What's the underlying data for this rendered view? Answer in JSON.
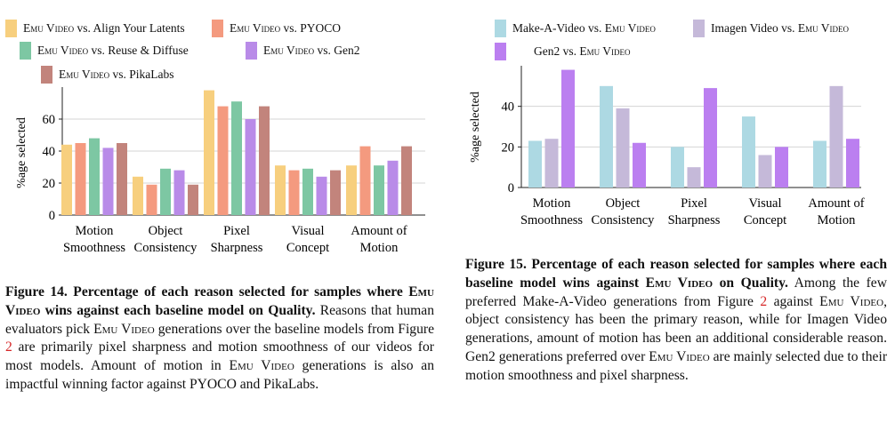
{
  "colors": {
    "align": "#f7cf7e",
    "pyoco": "#f49a7f",
    "reuse": "#7dc7a3",
    "gen2": "#b98be8",
    "pika": "#c2847c",
    "makeavideo": "#add9e3",
    "imagen": "#c5b9d9",
    "gen2_right": "#bb7ff0"
  },
  "chart_data": [
    {
      "type": "bar",
      "ylabel": "%age selected",
      "ylim": [
        0,
        80
      ],
      "yticks": [
        0,
        20,
        40,
        60
      ],
      "grid": true,
      "legend_placement": "top",
      "categories": [
        [
          "Motion",
          "Smoothness"
        ],
        [
          "Object",
          "Consistency"
        ],
        [
          "Pixel",
          "Sharpness"
        ],
        [
          "Visual",
          "Concept"
        ],
        [
          "Amount of",
          "Motion"
        ]
      ],
      "series": [
        {
          "name": "Emu Video vs. Align Your Latents",
          "color_key": "align",
          "values": [
            44,
            24,
            78,
            31,
            31
          ]
        },
        {
          "name": "Emu Video vs. PYOCO",
          "color_key": "pyoco",
          "values": [
            45,
            19,
            68,
            28,
            43
          ]
        },
        {
          "name": "Emu Video vs. Reuse & Diffuse",
          "color_key": "reuse",
          "values": [
            48,
            29,
            71,
            29,
            31
          ]
        },
        {
          "name": "Emu Video vs. Gen2",
          "color_key": "gen2",
          "values": [
            42,
            28,
            60,
            24,
            34
          ]
        },
        {
          "name": "Emu Video vs. PikaLabs",
          "color_key": "pika",
          "values": [
            45,
            19,
            68,
            28,
            43
          ]
        }
      ]
    },
    {
      "type": "bar",
      "ylabel": "%age selected",
      "ylim": [
        0,
        60
      ],
      "yticks": [
        0,
        20,
        40
      ],
      "grid": true,
      "legend_placement": "top",
      "categories": [
        [
          "Motion",
          "Smoothness"
        ],
        [
          "Object",
          "Consistency"
        ],
        [
          "Pixel",
          "Sharpness"
        ],
        [
          "Visual",
          "Concept"
        ],
        [
          "Amount of",
          "Motion"
        ]
      ],
      "series": [
        {
          "name": "Make-A-Video vs. Emu Video",
          "color_key": "makeavideo",
          "values": [
            23,
            50,
            20,
            35,
            23
          ]
        },
        {
          "name": "Imagen Video vs. Emu Video",
          "color_key": "imagen",
          "values": [
            24,
            39,
            10,
            16,
            50
          ]
        },
        {
          "name": "Gen2 vs. Emu Video",
          "color_key": "gen2_right",
          "values": [
            58,
            22,
            49,
            20,
            24
          ]
        }
      ]
    }
  ],
  "legend_left": {
    "emu": "Emu Video",
    "items": [
      "vs. Align Your Latents",
      "vs. PYOCO",
      "vs. Reuse & Diffuse",
      "vs. Gen2",
      "vs. PikaLabs"
    ]
  },
  "legend_right": {
    "emu": "Emu Video",
    "items": [
      "Make-A-Video vs.",
      "Imagen Video vs.",
      "Gen2 vs."
    ]
  },
  "caption14": {
    "label": "Figure 14.",
    "bold1": "Percentage of each reason selected for samples where",
    "emu": "Emu Video",
    "bold2": "wins against each baseline model on Quality.",
    "text1": "Reasons that human evaluators pick",
    "text2": "generations over the baseline models from Figure",
    "ref": "2",
    "text3": "are primarily pixel sharpness and motion smoothness of our videos for most models. Amount of motion in",
    "text4": "generations is also an impactful winning factor against PYOCO and PikaLabs."
  },
  "caption15": {
    "label": "Figure 15.",
    "bold1": "Percentage of each reason selected for samples where each baseline model wins against",
    "emu": "Emu Video",
    "bold2": "on Quality.",
    "text1": "Among the few preferred Make-A-Video generations from Figure",
    "ref": "2",
    "text2": "against",
    "text3": ", object consistency has been the primary reason, while for Imagen Video generations, amount of motion has been an additional considerable reason. Gen2 generations preferred over",
    "text4": "are mainly selected due to their motion smoothness and pixel sharpness."
  }
}
